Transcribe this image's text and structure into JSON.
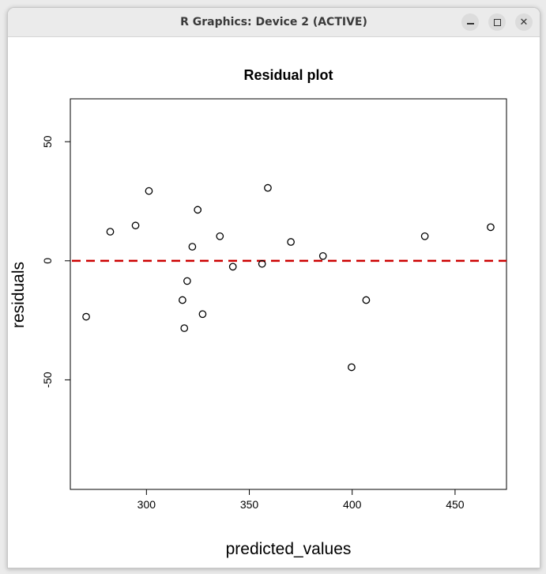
{
  "window": {
    "title": "R Graphics: Device 2 (ACTIVE)",
    "buttons": {
      "minimize": "minimize",
      "maximize": "maximize",
      "close": "close"
    }
  },
  "colors": {
    "points": "#000000",
    "reference_line": "#cc0000",
    "frame": "#000000"
  },
  "chart_data": {
    "type": "scatter",
    "title": "Residual plot",
    "xlabel": "predicted_values",
    "ylabel": "residuals",
    "xlim": [
      263,
      475
    ],
    "ylim": [
      -96,
      68
    ],
    "xticks": [
      300,
      350,
      400,
      450
    ],
    "yticks": [
      -50,
      0,
      50
    ],
    "grid": false,
    "legend": "none",
    "reference_line": {
      "y": 0,
      "style": "dashed",
      "color": "#cc0000"
    },
    "points": [
      {
        "x": 270.7,
        "y": -23.5
      },
      {
        "x": 282.4,
        "y": 12.2
      },
      {
        "x": 294.7,
        "y": 14.8
      },
      {
        "x": 301.2,
        "y": 29.3
      },
      {
        "x": 317.5,
        "y": -16.5
      },
      {
        "x": 318.4,
        "y": -28.3
      },
      {
        "x": 319.8,
        "y": -8.5
      },
      {
        "x": 322.3,
        "y": 5.9
      },
      {
        "x": 324.9,
        "y": 21.4
      },
      {
        "x": 327.3,
        "y": -22.4
      },
      {
        "x": 335.7,
        "y": 10.3
      },
      {
        "x": 342.0,
        "y": -2.5
      },
      {
        "x": 356.2,
        "y": -1.3
      },
      {
        "x": 359.0,
        "y": 30.6
      },
      {
        "x": 370.2,
        "y": 7.9
      },
      {
        "x": 385.8,
        "y": 2.0
      },
      {
        "x": 399.7,
        "y": -44.7
      },
      {
        "x": 406.8,
        "y": -16.5
      },
      {
        "x": 435.3,
        "y": 10.3
      },
      {
        "x": 467.3,
        "y": 14.1
      }
    ]
  }
}
